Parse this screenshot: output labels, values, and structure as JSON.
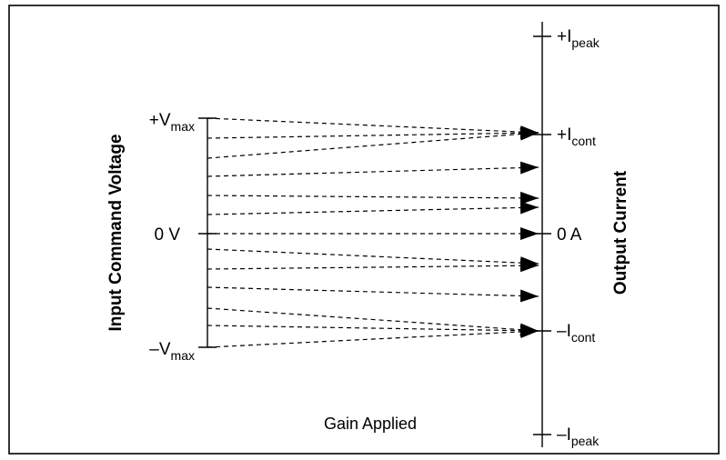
{
  "diagram": {
    "left_axis_title": "Input Command Voltage",
    "right_axis_title": "Output Current",
    "caption": "Gain Applied",
    "left_axis": {
      "vmax": {
        "sign": "+",
        "main": "V",
        "sub": "max"
      },
      "zero": {
        "main": "0 V"
      },
      "vmin": {
        "sign": "–",
        "main": "V",
        "sub": "max"
      }
    },
    "right_axis": {
      "ipeak_pos": {
        "sign": "+",
        "main": "I",
        "sub": "peak"
      },
      "icont_pos": {
        "sign": "+",
        "main": "I",
        "sub": "cont"
      },
      "zero": {
        "main": "0 A"
      },
      "icont_neg": {
        "sign": "–",
        "main": "I",
        "sub": "cont"
      },
      "ipeak_neg": {
        "sign": "–",
        "main": "I",
        "sub": "peak"
      }
    },
    "mapping_lines": [
      {
        "from": "+Vmax",
        "to": "+Icont"
      },
      {
        "from": "+0.9V",
        "to": "+Icont"
      },
      {
        "from": "+0.7V",
        "to": "+Icont"
      },
      {
        "from": "+0.5V",
        "to": "+0.73I"
      },
      {
        "from": "+0.36V",
        "to": "+0.47I"
      },
      {
        "from": "+0.18V",
        "to": "+0.2I"
      },
      {
        "from": "0V",
        "to": "0A"
      },
      {
        "from": "-0.16V",
        "to": "-0.22I"
      },
      {
        "from": "-0.32V",
        "to": "-0.48I"
      },
      {
        "from": "-0.5V",
        "to": "-0.73I"
      },
      {
        "from": "-0.7V",
        "to": "-Icont"
      },
      {
        "from": "-0.85V",
        "to": "-Icont"
      },
      {
        "from": "-Vmax",
        "to": "-Icont"
      }
    ]
  }
}
